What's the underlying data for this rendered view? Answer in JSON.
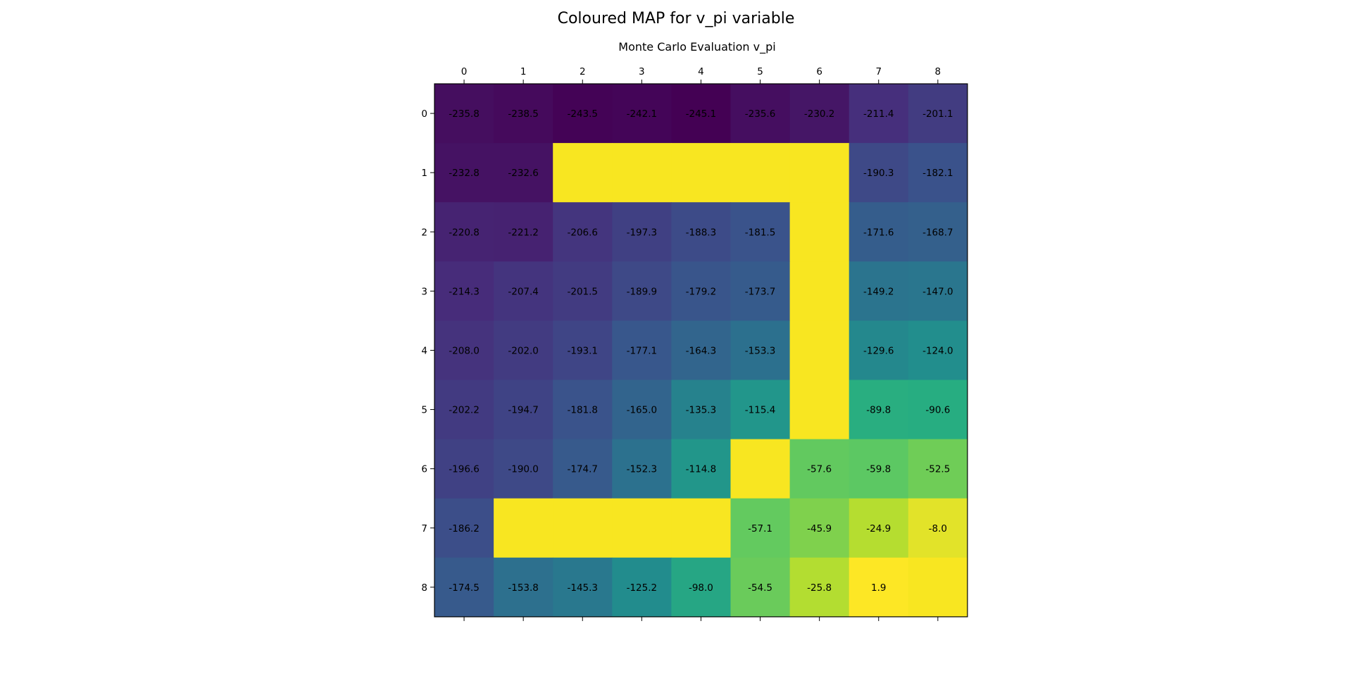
{
  "figure": {
    "suptitle": "Coloured MAP for v_pi variable"
  },
  "chart_data": {
    "type": "heatmap",
    "title": "Monte Carlo Evaluation v_pi",
    "x_ticks": [
      "0",
      "1",
      "2",
      "3",
      "4",
      "5",
      "6",
      "7",
      "8"
    ],
    "y_ticks": [
      "0",
      "1",
      "2",
      "3",
      "4",
      "5",
      "6",
      "7",
      "8"
    ],
    "x_ticks_position": "top",
    "colormap": "viridis",
    "wall_color": "#f8e621",
    "value_range": [
      -245.1,
      1.9
    ],
    "grid": false,
    "cells": [
      [
        {
          "value": -235.8,
          "label": "-235.8"
        },
        {
          "value": -238.5,
          "label": "-238.5"
        },
        {
          "value": -243.5,
          "label": "-243.5"
        },
        {
          "value": -242.1,
          "label": "-242.1"
        },
        {
          "value": -245.1,
          "label": "-245.1"
        },
        {
          "value": -235.6,
          "label": "-235.6"
        },
        {
          "value": -230.2,
          "label": "-230.2"
        },
        {
          "value": -211.4,
          "label": "-211.4"
        },
        {
          "value": -201.1,
          "label": "-201.1"
        }
      ],
      [
        {
          "value": -232.8,
          "label": "-232.8"
        },
        {
          "value": -232.6,
          "label": "-232.6"
        },
        {
          "value": null,
          "label": ""
        },
        {
          "value": null,
          "label": ""
        },
        {
          "value": null,
          "label": ""
        },
        {
          "value": null,
          "label": ""
        },
        {
          "value": null,
          "label": ""
        },
        {
          "value": -190.3,
          "label": "-190.3"
        },
        {
          "value": -182.1,
          "label": "-182.1"
        }
      ],
      [
        {
          "value": -220.8,
          "label": "-220.8"
        },
        {
          "value": -221.2,
          "label": "-221.2"
        },
        {
          "value": -206.6,
          "label": "-206.6"
        },
        {
          "value": -197.3,
          "label": "-197.3"
        },
        {
          "value": -188.3,
          "label": "-188.3"
        },
        {
          "value": -181.5,
          "label": "-181.5"
        },
        {
          "value": null,
          "label": ""
        },
        {
          "value": -171.6,
          "label": "-171.6"
        },
        {
          "value": -168.7,
          "label": "-168.7"
        }
      ],
      [
        {
          "value": -214.3,
          "label": "-214.3"
        },
        {
          "value": -207.4,
          "label": "-207.4"
        },
        {
          "value": -201.5,
          "label": "-201.5"
        },
        {
          "value": -189.9,
          "label": "-189.9"
        },
        {
          "value": -179.2,
          "label": "-179.2"
        },
        {
          "value": -173.7,
          "label": "-173.7"
        },
        {
          "value": null,
          "label": ""
        },
        {
          "value": -149.2,
          "label": "-149.2"
        },
        {
          "value": -147.0,
          "label": "-147.0"
        }
      ],
      [
        {
          "value": -208.0,
          "label": "-208.0"
        },
        {
          "value": -202.0,
          "label": "-202.0"
        },
        {
          "value": -193.1,
          "label": "-193.1"
        },
        {
          "value": -177.1,
          "label": "-177.1"
        },
        {
          "value": -164.3,
          "label": "-164.3"
        },
        {
          "value": -153.3,
          "label": "-153.3"
        },
        {
          "value": null,
          "label": ""
        },
        {
          "value": -129.6,
          "label": "-129.6"
        },
        {
          "value": -124.0,
          "label": "-124.0"
        }
      ],
      [
        {
          "value": -202.2,
          "label": "-202.2"
        },
        {
          "value": -194.7,
          "label": "-194.7"
        },
        {
          "value": -181.8,
          "label": "-181.8"
        },
        {
          "value": -165.0,
          "label": "-165.0"
        },
        {
          "value": -135.3,
          "label": "-135.3"
        },
        {
          "value": -115.4,
          "label": "-115.4"
        },
        {
          "value": null,
          "label": ""
        },
        {
          "value": -89.8,
          "label": "-89.8"
        },
        {
          "value": -90.6,
          "label": "-90.6"
        }
      ],
      [
        {
          "value": -196.6,
          "label": "-196.6"
        },
        {
          "value": -190.0,
          "label": "-190.0"
        },
        {
          "value": -174.7,
          "label": "-174.7"
        },
        {
          "value": -152.3,
          "label": "-152.3"
        },
        {
          "value": -114.8,
          "label": "-114.8"
        },
        {
          "value": null,
          "label": ""
        },
        {
          "value": -57.6,
          "label": "-57.6"
        },
        {
          "value": -59.8,
          "label": "-59.8"
        },
        {
          "value": -52.5,
          "label": "-52.5"
        }
      ],
      [
        {
          "value": -186.2,
          "label": "-186.2"
        },
        {
          "value": null,
          "label": ""
        },
        {
          "value": null,
          "label": ""
        },
        {
          "value": null,
          "label": ""
        },
        {
          "value": null,
          "label": ""
        },
        {
          "value": -57.1,
          "label": "-57.1"
        },
        {
          "value": -45.9,
          "label": "-45.9"
        },
        {
          "value": -24.9,
          "label": "-24.9"
        },
        {
          "value": -8.0,
          "label": "-8.0"
        }
      ],
      [
        {
          "value": -174.5,
          "label": "-174.5"
        },
        {
          "value": -153.8,
          "label": "-153.8"
        },
        {
          "value": -145.3,
          "label": "-145.3"
        },
        {
          "value": -125.2,
          "label": "-125.2"
        },
        {
          "value": -98.0,
          "label": "-98.0"
        },
        {
          "value": -54.5,
          "label": "-54.5"
        },
        {
          "value": -25.8,
          "label": "-25.8"
        },
        {
          "value": 1.9,
          "label": "1.9"
        },
        {
          "value": null,
          "label": ""
        }
      ]
    ]
  }
}
